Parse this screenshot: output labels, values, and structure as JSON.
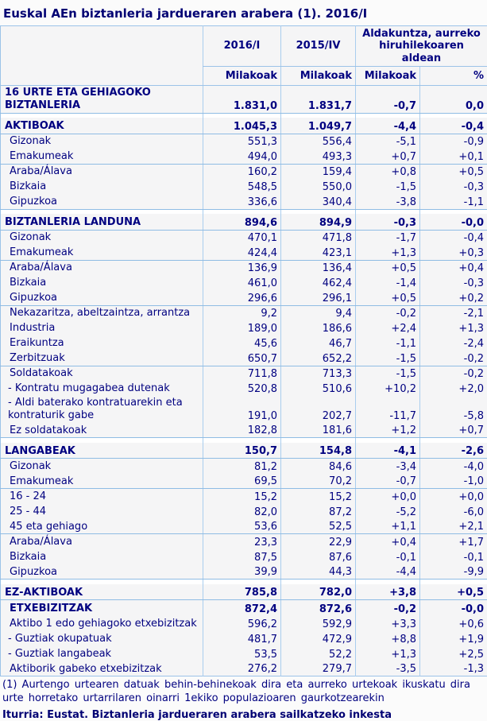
{
  "title": "Euskal AEn biztanleria jardueraren arabera (1). 2016/I",
  "colors": {
    "text_navy": "#000080",
    "border_blue": "#9cc3e8",
    "cell_bg": "#f5f5f6",
    "spacer_bg": "#ffffff"
  },
  "table": {
    "col_headers": {
      "period_current": "2016/I",
      "period_previous": "2015/IV",
      "change_group": "Aldakuntza, aurreko hiruhilekoaren aldean",
      "sub1": "Milakoak",
      "sub2": "Milakoak",
      "sub3": "Milakoak",
      "sub4": "%"
    },
    "rows": [
      {
        "label": "16 URTE ETA GEHIAGOKO\nBIZTANLERIA",
        "values": [
          "1.831,0",
          "1.831,7",
          "-0,7",
          "0,0"
        ],
        "bold": true,
        "indent": 0,
        "rule": true
      },
      {
        "spacer": true
      },
      {
        "label": "AKTIBOAK",
        "values": [
          "1.045,3",
          "1.049,7",
          "-4,4",
          "-0,4"
        ],
        "bold": true,
        "indent": 0,
        "rule": true
      },
      {
        "label": "Gizonak",
        "values": [
          "551,3",
          "556,4",
          "-5,1",
          "-0,9"
        ],
        "indent": 1
      },
      {
        "label": "Emakumeak",
        "values": [
          "494,0",
          "493,3",
          "+0,7",
          "+0,1"
        ],
        "indent": 1,
        "rule": true
      },
      {
        "label": "Araba/Álava",
        "values": [
          "160,2",
          "159,4",
          "+0,8",
          "+0,5"
        ],
        "indent": 1
      },
      {
        "label": "Bizkaia",
        "values": [
          "548,5",
          "550,0",
          "-1,5",
          "-0,3"
        ],
        "indent": 1
      },
      {
        "label": "Gipuzkoa",
        "values": [
          "336,6",
          "340,4",
          "-3,8",
          "-1,1"
        ],
        "indent": 1,
        "rule": true
      },
      {
        "spacer": true
      },
      {
        "label": "BIZTANLERIA LANDUNA",
        "values": [
          "894,6",
          "894,9",
          "-0,3",
          "-0,0"
        ],
        "bold": true,
        "indent": 0,
        "rule": true
      },
      {
        "label": "Gizonak",
        "values": [
          "470,1",
          "471,8",
          "-1,7",
          "-0,4"
        ],
        "indent": 1
      },
      {
        "label": "Emakumeak",
        "values": [
          "424,4",
          "423,1",
          "+1,3",
          "+0,3"
        ],
        "indent": 1,
        "rule": true
      },
      {
        "label": "Araba/Álava",
        "values": [
          "136,9",
          "136,4",
          "+0,5",
          "+0,4"
        ],
        "indent": 1
      },
      {
        "label": "Bizkaia",
        "values": [
          "461,0",
          "462,4",
          "-1,4",
          "-0,3"
        ],
        "indent": 1
      },
      {
        "label": "Gipuzkoa",
        "values": [
          "296,6",
          "296,1",
          "+0,5",
          "+0,2"
        ],
        "indent": 1,
        "rule": true
      },
      {
        "label": "Nekazaritza, abeltzaintza, arrantza",
        "values": [
          "9,2",
          "9,4",
          "-0,2",
          "-2,1"
        ],
        "indent": 1
      },
      {
        "label": "Industria",
        "values": [
          "189,0",
          "186,6",
          "+2,4",
          "+1,3"
        ],
        "indent": 1
      },
      {
        "label": "Eraikuntza",
        "values": [
          "45,6",
          "46,7",
          "-1,1",
          "-2,4"
        ],
        "indent": 1
      },
      {
        "label": "Zerbitzuak",
        "values": [
          "650,7",
          "652,2",
          "-1,5",
          "-0,2"
        ],
        "indent": 1,
        "rule": true
      },
      {
        "label": "Soldatakoak",
        "values": [
          "711,8",
          "713,3",
          "-1,5",
          "-0,2"
        ],
        "indent": 1
      },
      {
        "label": "- Kontratu mugagabea dutenak",
        "values": [
          "520,8",
          "510,6",
          "+10,2",
          "+2,0"
        ],
        "indent": 2
      },
      {
        "label": "- Aldi baterako kontratuarekin eta\nkontraturik gabe",
        "values": [
          "191,0",
          "202,7",
          "-11,7",
          "-5,8"
        ],
        "indent": 2
      },
      {
        "label": "Ez soldatakoak",
        "values": [
          "182,8",
          "181,6",
          "+1,2",
          "+0,7"
        ],
        "indent": 1,
        "rule": true
      },
      {
        "spacer": true
      },
      {
        "label": "LANGABEAK",
        "values": [
          "150,7",
          "154,8",
          "-4,1",
          "-2,6"
        ],
        "bold": true,
        "indent": 0,
        "rule": true
      },
      {
        "label": "Gizonak",
        "values": [
          "81,2",
          "84,6",
          "-3,4",
          "-4,0"
        ],
        "indent": 1
      },
      {
        "label": "Emakumeak",
        "values": [
          "69,5",
          "70,2",
          "-0,7",
          "-1,0"
        ],
        "indent": 1,
        "rule": true
      },
      {
        "label": "16 - 24",
        "values": [
          "15,2",
          "15,2",
          "+0,0",
          "+0,0"
        ],
        "indent": 1
      },
      {
        "label": "25 - 44",
        "values": [
          "82,0",
          "87,2",
          "-5,2",
          "-6,0"
        ],
        "indent": 1
      },
      {
        "label": "45 eta gehiago",
        "values": [
          "53,6",
          "52,5",
          "+1,1",
          "+2,1"
        ],
        "indent": 1,
        "rule": true
      },
      {
        "label": "Araba/Álava",
        "values": [
          "23,3",
          "22,9",
          "+0,4",
          "+1,7"
        ],
        "indent": 1
      },
      {
        "label": "Bizkaia",
        "values": [
          "87,5",
          "87,6",
          "-0,1",
          "-0,1"
        ],
        "indent": 1
      },
      {
        "label": "Gipuzkoa",
        "values": [
          "39,9",
          "44,3",
          "-4,4",
          "-9,9"
        ],
        "indent": 1,
        "rule": true
      },
      {
        "spacer": true
      },
      {
        "label": "EZ-AKTIBOAK",
        "values": [
          "785,8",
          "782,0",
          "+3,8",
          "+0,5"
        ],
        "bold": true,
        "indent": 0,
        "rule": true
      },
      {
        "label": "ETXEBIZITZAK",
        "values": [
          "872,4",
          "872,6",
          "-0,2",
          "-0,0"
        ],
        "bold": true,
        "indent": 1
      },
      {
        "label": "Aktibo 1 edo gehiagoko etxebizitzak",
        "values": [
          "596,2",
          "592,9",
          "+3,3",
          "+0,6"
        ],
        "indent": 1
      },
      {
        "label": "- Guztiak okupatuak",
        "values": [
          "481,7",
          "472,9",
          "+8,8",
          "+1,9"
        ],
        "indent": 2
      },
      {
        "label": "- Guztiak langabeak",
        "values": [
          "53,5",
          "52,2",
          "+1,3",
          "+2,5"
        ],
        "indent": 2
      },
      {
        "label": "Aktiborik gabeko etxebizitzak",
        "values": [
          "276,2",
          "279,7",
          "-3,5",
          "-1,3"
        ],
        "indent": 1
      }
    ]
  },
  "footnote": "(1) Aurtengo urtearen datuak behin-behinekoak dira eta aurreko urtekoak ikuskatu dira urte horretako urtarrilaren oinarri 1ekiko populazioaren gaurkotzearekin",
  "source": "Iturria: Eustat. Biztanleria jardueraren arabera sailkatzeko inkesta"
}
